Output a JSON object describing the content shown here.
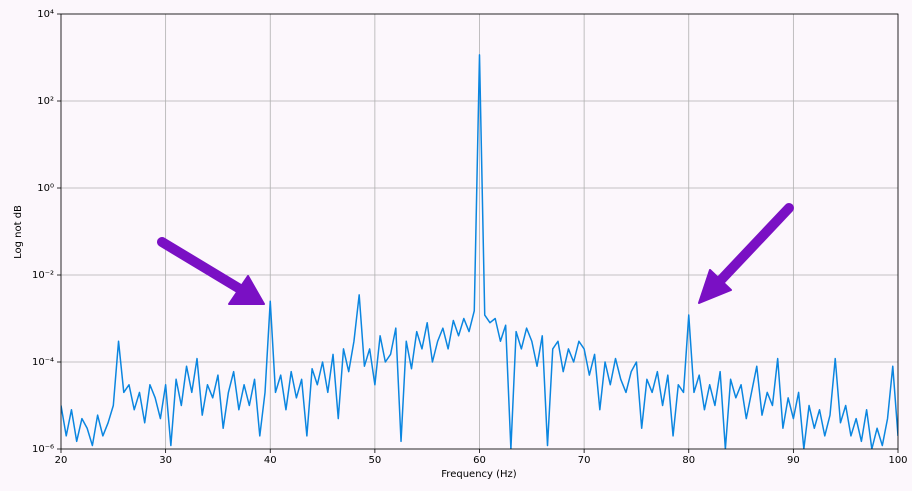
{
  "chart_data": {
    "type": "line",
    "xlabel": "Frequency (Hz)",
    "ylabel": "Log not dB",
    "yscale": "log",
    "grid": true,
    "xlim": [
      20,
      100
    ],
    "xticks": [
      20,
      30,
      40,
      50,
      60,
      70,
      80,
      90,
      100
    ],
    "ylim": [
      1e-06,
      10000
    ],
    "yticks": [
      {
        "value": 1e-06,
        "label": "10⁻⁶"
      },
      {
        "value": 0.0001,
        "label": "10⁻⁴"
      },
      {
        "value": 0.01,
        "label": "10⁻²"
      },
      {
        "value": 1,
        "label": "10⁰"
      },
      {
        "value": 100,
        "label": "10²"
      },
      {
        "value": 10000,
        "label": "10⁴"
      }
    ],
    "x": [
      20,
      20.5,
      21,
      21.5,
      22,
      22.5,
      23,
      23.5,
      24,
      24.5,
      25,
      25.5,
      26,
      26.5,
      27,
      27.5,
      28,
      28.5,
      29,
      29.5,
      30,
      30.5,
      31,
      31.5,
      32,
      32.5,
      33,
      33.5,
      34,
      34.5,
      35,
      35.5,
      36,
      36.5,
      37,
      37.5,
      38,
      38.5,
      39,
      39.5,
      40,
      40.5,
      41,
      41.5,
      42,
      42.5,
      43,
      43.5,
      44,
      44.5,
      45,
      45.5,
      46,
      46.5,
      47,
      47.5,
      48,
      48.5,
      49,
      49.5,
      50,
      50.5,
      51,
      51.5,
      52,
      52.5,
      53,
      53.5,
      54,
      54.5,
      55,
      55.5,
      56,
      56.5,
      57,
      57.5,
      58,
      58.5,
      59,
      59.5,
      60,
      60.5,
      61,
      61.5,
      62,
      62.5,
      63,
      63.5,
      64,
      64.5,
      65,
      65.5,
      66,
      66.5,
      67,
      67.5,
      68,
      68.5,
      69,
      69.5,
      70,
      70.5,
      71,
      71.5,
      72,
      72.5,
      73,
      73.5,
      74,
      74.5,
      75,
      75.5,
      76,
      76.5,
      77,
      77.5,
      78,
      78.5,
      79,
      79.5,
      80,
      80.5,
      81,
      81.5,
      82,
      82.5,
      83,
      83.5,
      84,
      84.5,
      85,
      85.5,
      86,
      86.5,
      87,
      87.5,
      88,
      88.5,
      89,
      89.5,
      90,
      90.5,
      91,
      91.5,
      92,
      92.5,
      93,
      93.5,
      94,
      94.5,
      95,
      95.5,
      96,
      96.5,
      97,
      97.5,
      98,
      98.5,
      99,
      99.5,
      100
    ],
    "series": [
      {
        "color": "#0b86e0",
        "values": [
          1e-05,
          2e-06,
          8e-06,
          1.5e-06,
          5e-06,
          3e-06,
          1.2e-06,
          6e-06,
          2e-06,
          4e-06,
          1e-05,
          0.0003,
          2e-05,
          3e-05,
          8e-06,
          2e-05,
          4e-06,
          3e-05,
          1.5e-05,
          5e-06,
          3e-05,
          1.2e-06,
          4e-05,
          1e-05,
          8e-05,
          2e-05,
          0.00012,
          6e-06,
          3e-05,
          1.5e-05,
          5e-05,
          3e-06,
          2e-05,
          6e-05,
          8e-06,
          3e-05,
          1e-05,
          4e-05,
          2e-06,
          2e-05,
          0.0025,
          2e-05,
          5e-05,
          8e-06,
          6e-05,
          1.5e-05,
          4e-05,
          2e-06,
          7e-05,
          3e-05,
          0.0001,
          2e-05,
          0.00015,
          5e-06,
          0.0002,
          6e-05,
          0.0003,
          0.0035,
          8e-05,
          0.0002,
          3e-05,
          0.0004,
          0.0001,
          0.00015,
          0.0006,
          1.5e-06,
          0.0003,
          7e-05,
          0.0005,
          0.0002,
          0.0008,
          0.0001,
          0.0003,
          0.0006,
          0.0002,
          0.0009,
          0.0004,
          0.001,
          0.0005,
          0.0015,
          1150,
          0.0012,
          0.0008,
          0.001,
          0.0003,
          0.0007,
          1e-06,
          0.0005,
          0.0002,
          0.0006,
          0.0003,
          8e-05,
          0.0004,
          1.2e-06,
          0.0002,
          0.0003,
          6e-05,
          0.0002,
          0.0001,
          0.0003,
          0.0002,
          5e-05,
          0.00015,
          8e-06,
          0.0001,
          3e-05,
          0.00012,
          4e-05,
          2e-05,
          6e-05,
          0.0001,
          3e-06,
          4e-05,
          2e-05,
          6e-05,
          1e-05,
          5e-05,
          2e-06,
          3e-05,
          2e-05,
          0.0012,
          2e-05,
          5e-05,
          8e-06,
          3e-05,
          1e-05,
          6e-05,
          1e-06,
          4e-05,
          1.5e-05,
          3e-05,
          5e-06,
          2e-05,
          8e-05,
          6e-06,
          2e-05,
          1e-05,
          0.00012,
          3e-06,
          1.5e-05,
          5e-06,
          2e-05,
          1e-06,
          1e-05,
          3e-06,
          8e-06,
          2e-06,
          6e-06,
          0.00012,
          4e-06,
          1e-05,
          2e-06,
          5e-06,
          1.5e-06,
          8e-06,
          1e-06,
          3e-06,
          1.2e-06,
          5e-06,
          8e-05,
          2e-06
        ]
      }
    ]
  }
}
